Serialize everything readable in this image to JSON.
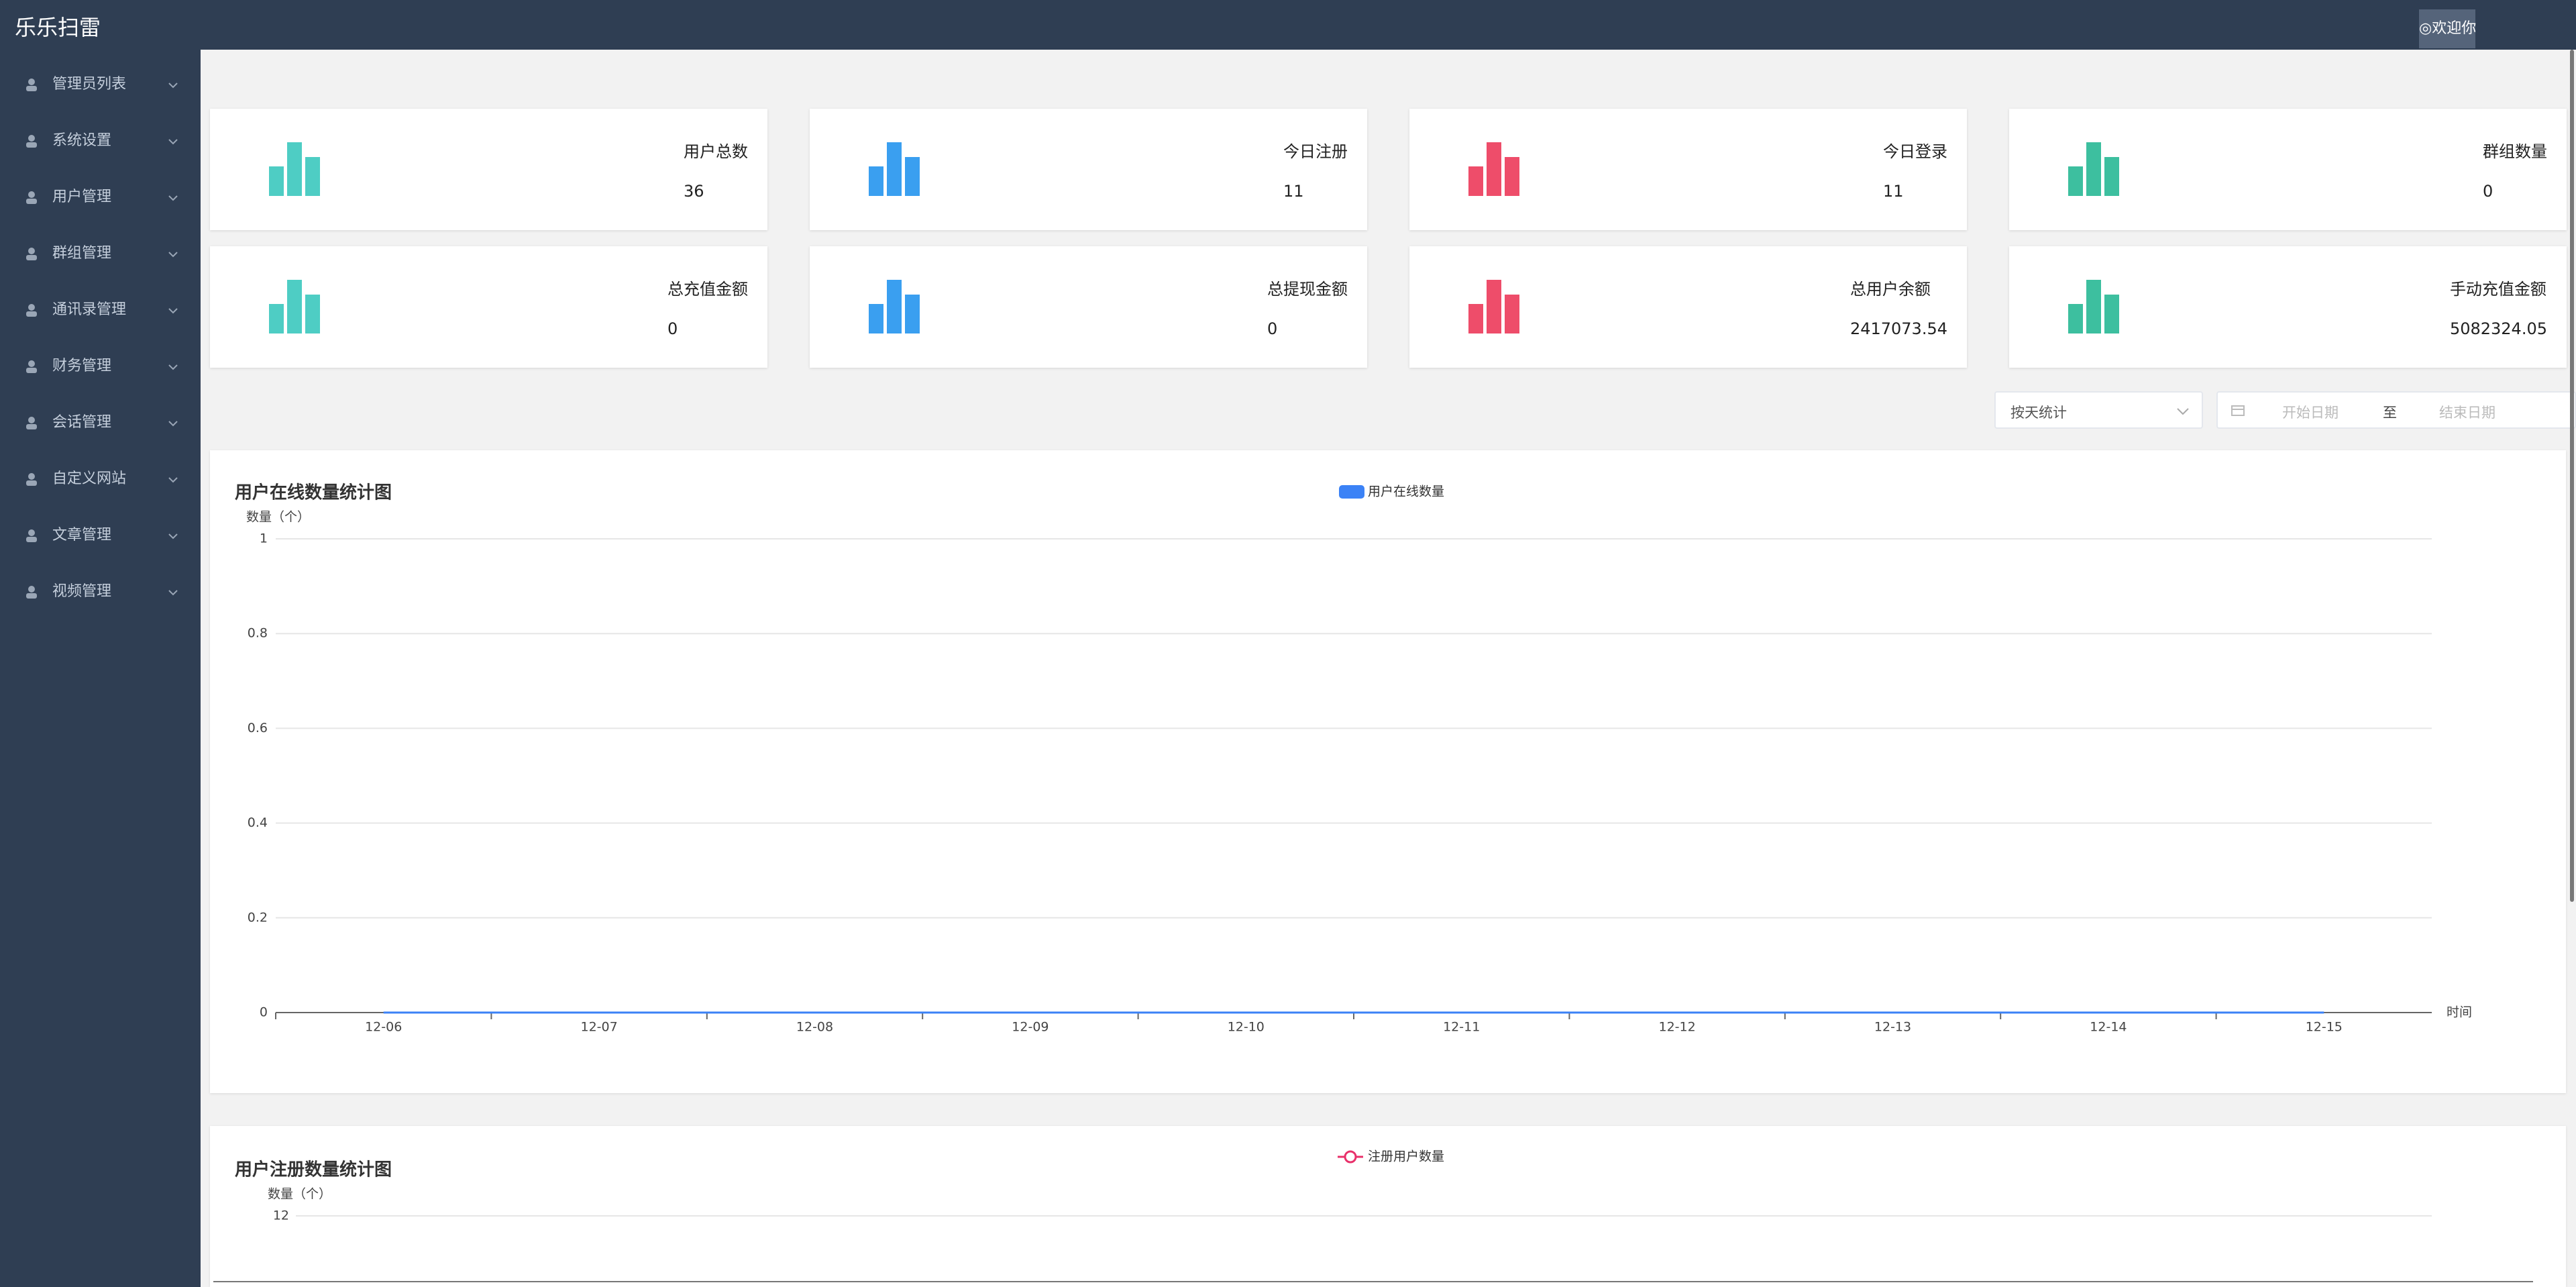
{
  "header": {
    "title": "乐乐扫雷",
    "user": "◎欢迎你"
  },
  "menu": [
    "管理员列表",
    "系统设置",
    "用户管理",
    "群组管理",
    "通讯录管理",
    "财务管理",
    "会话管理",
    "自定义网站",
    "文章管理",
    "视频管理"
  ],
  "cards": [
    {
      "label": "用户总数",
      "value": 36,
      "color": "#4ecdc4"
    },
    {
      "label": "今日注册",
      "value": 11,
      "color": "#3a9ff0"
    },
    {
      "label": "今日登录",
      "value": 11,
      "color": "#ee4d6a"
    },
    {
      "label": "群组数量",
      "value": 0,
      "color": "#3dbf9f"
    },
    {
      "label": "总充值金额",
      "value": 0,
      "color": "#4ecdc4"
    },
    {
      "label": "总提现金额",
      "value": 0,
      "color": "#3a9ff0"
    },
    {
      "label": "总用户余额",
      "value": 2417073.54,
      "color": "#ee4d6a"
    },
    {
      "label": "手动充值金额",
      "value": 5082324.05,
      "color": "#3dbf9f"
    }
  ],
  "filter": {
    "mode": "按天统计",
    "start": "开始日期",
    "separator": "至",
    "end": "结束日期"
  },
  "charts": [
    {
      "type": "line",
      "title": "用户在线数量统计图",
      "y_axis_label": "数量（个）",
      "x_axis_label": "时间",
      "categories": [
        "12-06",
        "12-07",
        "12-08",
        "12-09",
        "12-10",
        "12-11",
        "12-12",
        "12-13",
        "12-14",
        "12-15"
      ],
      "series": [
        {
          "name": "用户在线数量",
          "color": "#3b82f6",
          "values": [
            0,
            0,
            0,
            0,
            0,
            0,
            0,
            0,
            0,
            0
          ]
        }
      ],
      "ylim": [
        0,
        1
      ],
      "yticks": [
        0,
        0.2,
        0.4,
        0.6,
        0.8,
        1
      ]
    },
    {
      "type": "line",
      "title": "用户注册数量统计图",
      "y_axis_label": "数量（个）",
      "series": [
        {
          "name": "注册用户数量",
          "color": "#e8306a"
        }
      ],
      "yticks": [
        12
      ]
    }
  ]
}
